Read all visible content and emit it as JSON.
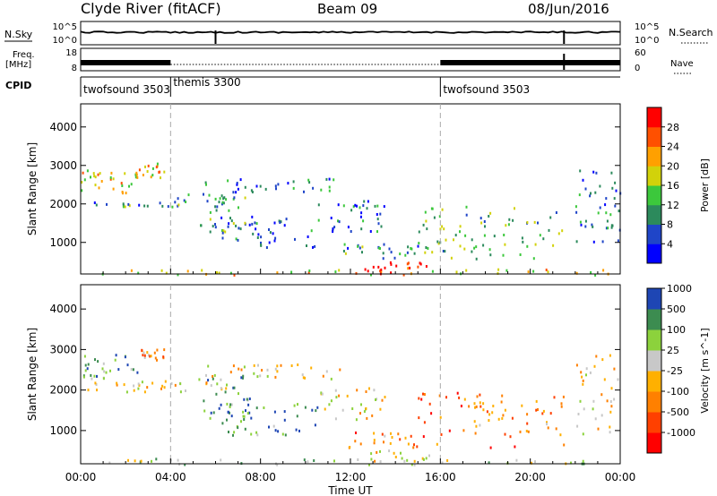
{
  "header": {
    "station": "Clyde River (fitACF)",
    "beam": "Beam 09",
    "date": "08/Jun/2016"
  },
  "strip_labels": {
    "nsky": "N.Sky",
    "nsearch": "N.Search",
    "freq_line1": "Freq.",
    "freq_line2": "[MHz]",
    "nave": "Nave",
    "cpid": "CPID",
    "nsky_ticks": [
      "10^5",
      "10^0"
    ],
    "nsearch_ticks": [
      "10^5",
      "10^0"
    ],
    "freq_ticks": [
      "18",
      "8"
    ],
    "nave_ticks": [
      "60",
      "0"
    ]
  },
  "cpid_segments": [
    {
      "label": "twofsound 3503",
      "start_hour": 0
    },
    {
      "label": "themis 3300",
      "start_hour": 4
    },
    {
      "label": "twofsound 3503",
      "start_hour": 16
    }
  ],
  "colors": {
    "power_scale": [
      "#0000ff",
      "#1f45c8",
      "#2c8a5c",
      "#3cc83c",
      "#d2d20a",
      "#ffa000",
      "#ff5000",
      "#ff0000"
    ],
    "velocity_scale": [
      "#ff0000",
      "#ff4000",
      "#ff8000",
      "#ffb000",
      "#c8c8c8",
      "#8cd23c",
      "#3c8c50",
      "#1e46b4"
    ],
    "ground_scatter": "#c8c8c8"
  },
  "chart_data": [
    {
      "type": "heatmap",
      "name": "power",
      "ylabel": "Slant Range [km]",
      "colorbar_label": "Power [dB]",
      "colorbar_ticks": [
        "4",
        "8",
        "12",
        "16",
        "20",
        "24",
        "28"
      ],
      "colorbar_range": [
        0,
        32
      ],
      "yticks": [
        "1000",
        "2000",
        "3000",
        "4000"
      ],
      "ylim": [
        180,
        4600
      ],
      "xlim_hours": [
        0,
        24
      ],
      "scatter_regions": [
        {
          "t0": 0,
          "t1": 2.5,
          "r0": 2300,
          "r1": 2900,
          "level": 0.6
        },
        {
          "t0": 2.4,
          "t1": 3.7,
          "r0": 2700,
          "r1": 3100,
          "level": 0.62
        },
        {
          "t0": 0.3,
          "t1": 6.5,
          "r0": 1950,
          "r1": 2300,
          "level": 0.3
        },
        {
          "t0": 5.5,
          "t1": 11.5,
          "r0": 2300,
          "r1": 2700,
          "level": 0.22
        },
        {
          "t0": 5.2,
          "t1": 7.5,
          "r0": 1300,
          "r1": 2400,
          "level": 0.35
        },
        {
          "t0": 6.0,
          "t1": 10.5,
          "r0": 900,
          "r1": 1700,
          "level": 0.22
        },
        {
          "t0": 10.5,
          "t1": 13.5,
          "r0": 1300,
          "r1": 2100,
          "level": 0.2
        },
        {
          "t0": 11.5,
          "t1": 15.0,
          "r0": 600,
          "r1": 1000,
          "level": 0.3
        },
        {
          "t0": 15.0,
          "t1": 21.5,
          "r0": 600,
          "r1": 2000,
          "level": 0.4
        },
        {
          "t0": 22.0,
          "t1": 24.0,
          "r0": 900,
          "r1": 2900,
          "level": 0.22
        },
        {
          "t0": 0,
          "t1": 24.0,
          "r0": 180,
          "r1": 330,
          "level": 0.6
        },
        {
          "t0": 12.5,
          "t1": 15.5,
          "r0": 180,
          "r1": 550,
          "level": 0.95
        }
      ]
    },
    {
      "type": "heatmap",
      "name": "velocity",
      "xlabel": "Time UT",
      "ylabel": "Slant Range [km]",
      "colorbar_label": "Velocity [m s^-1]",
      "colorbar_ticks": [
        "-1000",
        "-500",
        "-100",
        "-25",
        "25",
        "100",
        "500",
        "1000"
      ],
      "yticks": [
        "1000",
        "2000",
        "3000",
        "4000"
      ],
      "ylim": [
        180,
        4600
      ],
      "xlim_hours": [
        0,
        24
      ],
      "xticks": [
        "00:00",
        "04:00",
        "08:00",
        "12:00",
        "16:00",
        "20:00",
        "00:00"
      ],
      "scatter_regions": [
        {
          "t0": 0,
          "t1": 2.5,
          "r0": 2300,
          "r1": 2900,
          "level": 0.72
        },
        {
          "t0": 2.4,
          "t1": 3.7,
          "r0": 2700,
          "r1": 3100,
          "level": 0.35
        },
        {
          "t0": 0.3,
          "t1": 6.5,
          "r0": 1950,
          "r1": 2300,
          "level": 0.5
        },
        {
          "t0": 5.5,
          "t1": 11.5,
          "r0": 2300,
          "r1": 2700,
          "level": 0.5
        },
        {
          "t0": 5.2,
          "t1": 7.5,
          "r0": 1300,
          "r1": 2400,
          "level": 0.78
        },
        {
          "t0": 6.0,
          "t1": 10.5,
          "r0": 900,
          "r1": 1700,
          "level": 0.82
        },
        {
          "t0": 10.5,
          "t1": 13.5,
          "r0": 1300,
          "r1": 2100,
          "level": 0.5
        },
        {
          "t0": 11.5,
          "t1": 15.0,
          "r0": 600,
          "r1": 1000,
          "level": 0.3
        },
        {
          "t0": 15.0,
          "t1": 21.5,
          "r0": 600,
          "r1": 2000,
          "level": 0.28
        },
        {
          "t0": 22.0,
          "t1": 24.0,
          "r0": 900,
          "r1": 2900,
          "level": 0.5
        },
        {
          "t0": 0,
          "t1": 24.0,
          "r0": 180,
          "r1": 330,
          "level": 0.62
        },
        {
          "t0": 12.5,
          "t1": 15.5,
          "r0": 180,
          "r1": 550,
          "level": 0.5
        }
      ]
    }
  ]
}
